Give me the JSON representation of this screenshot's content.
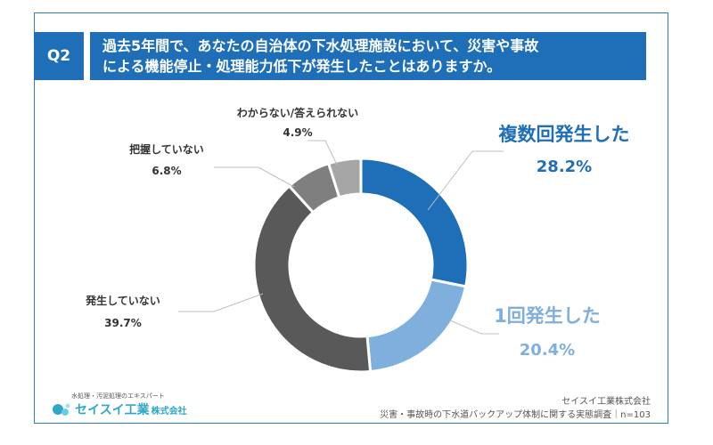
{
  "question": {
    "badge": "Q2",
    "line1": "過去5年間で、あなたの自治体の下水処理施設において、災害や事故",
    "line2": "による機能停止・処理能力低下が発生したことはありますか。"
  },
  "chart_data": {
    "type": "pie",
    "donut": true,
    "slices": [
      {
        "label": "複数回発生した",
        "value": 28.2,
        "value_label": "28.2%",
        "color": "#1e6fb8"
      },
      {
        "label": "1回発生した",
        "value": 20.4,
        "value_label": "20.4%",
        "color": "#7fb0dd"
      },
      {
        "label": "発生していない",
        "value": 39.7,
        "value_label": "39.7%",
        "color": "#595959"
      },
      {
        "label": "把握していない",
        "value": 6.8,
        "value_label": "6.8%",
        "color": "#7f7f7f"
      },
      {
        "label": "わからない/答えられない",
        "value": 4.9,
        "value_label": "4.9%",
        "color": "#a6a6a6"
      }
    ]
  },
  "footer": {
    "company": "セイスイ工業株式会社",
    "survey": "災害・事故時の下水道バックアップ体制に関する実態調査｜n=103",
    "logo_tagline": "水処理・汚泥処理のエキスパート",
    "logo_name": "セイスイ工業",
    "logo_suffix": "株式会社"
  }
}
